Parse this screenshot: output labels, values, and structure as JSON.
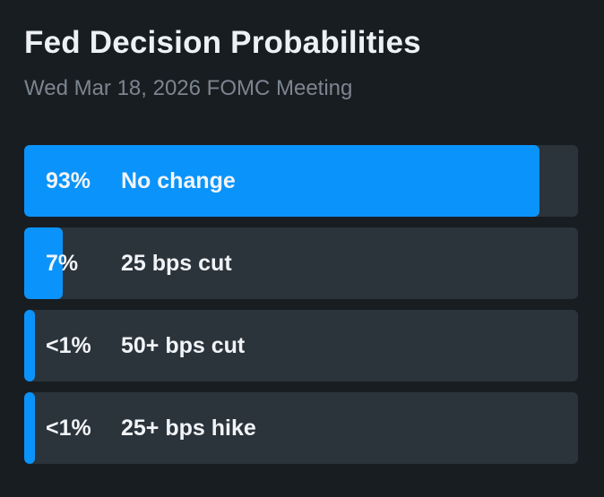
{
  "header": {
    "title": "Fed Decision Probabilities",
    "subtitle": "Wed Mar 18, 2026 FOMC Meeting"
  },
  "colors": {
    "fill": "#0a93fb",
    "track": "#2b333b",
    "background": "#181d22"
  },
  "options": [
    {
      "percent_label": "93%",
      "label": "No change",
      "probability": 0.93
    },
    {
      "percent_label": "7%",
      "label": "25 bps cut",
      "probability": 0.07
    },
    {
      "percent_label": "<1%",
      "label": "50+ bps cut",
      "probability": 0.01
    },
    {
      "percent_label": "<1%",
      "label": "25+ bps hike",
      "probability": 0.01
    }
  ]
}
